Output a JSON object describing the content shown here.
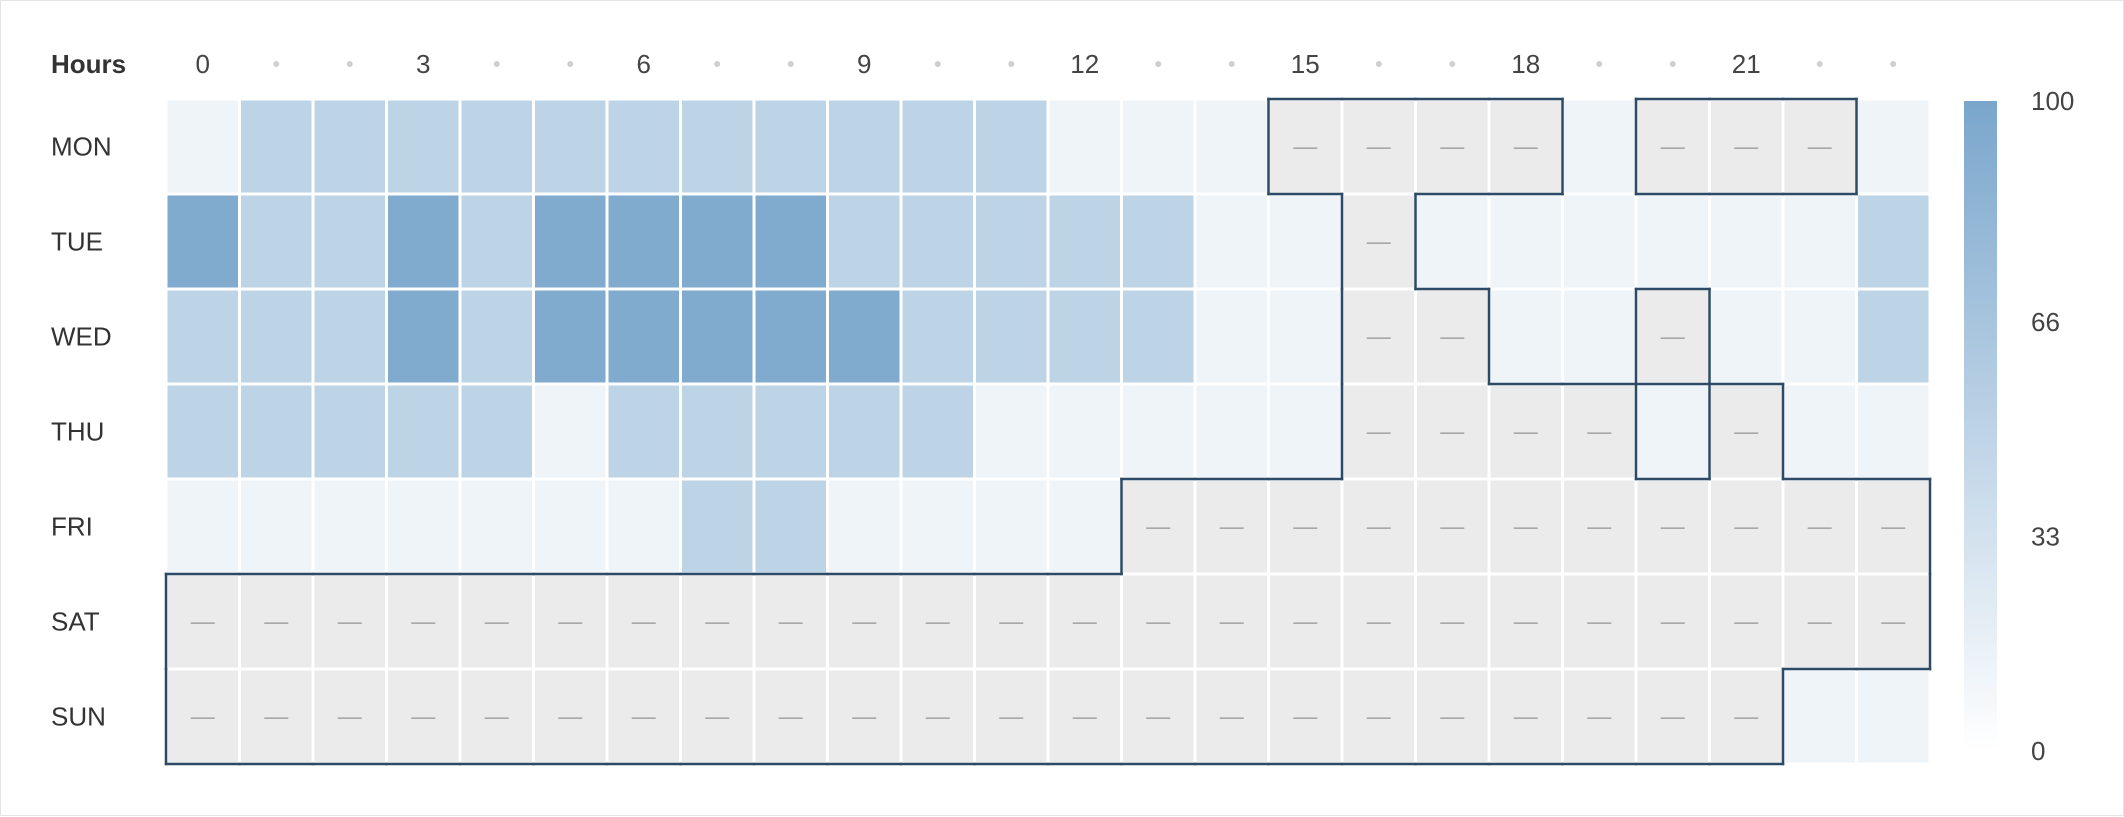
{
  "chart_data": {
    "type": "heatmap",
    "title": "",
    "x_header": "Hours",
    "x_tick_labels": [
      "0",
      "",
      "",
      "3",
      "",
      "",
      "6",
      "",
      "",
      "9",
      "",
      "",
      "12",
      "",
      "",
      "15",
      "",
      "",
      "18",
      "",
      "",
      "21",
      "",
      ""
    ],
    "hours": [
      0,
      1,
      2,
      3,
      4,
      5,
      6,
      7,
      8,
      9,
      10,
      11,
      12,
      13,
      14,
      15,
      16,
      17,
      18,
      19,
      20,
      21,
      22,
      23
    ],
    "days": [
      "MON",
      "TUE",
      "WED",
      "THU",
      "FRI",
      "SAT",
      "SUN"
    ],
    "missing_marker": "—",
    "values": [
      [
        12,
        50,
        50,
        50,
        50,
        50,
        50,
        50,
        50,
        50,
        50,
        50,
        12,
        12,
        12,
        null,
        null,
        null,
        null,
        12,
        null,
        null,
        null,
        12
      ],
      [
        95,
        50,
        50,
        95,
        50,
        95,
        95,
        95,
        95,
        50,
        50,
        50,
        50,
        50,
        12,
        12,
        null,
        12,
        12,
        12,
        12,
        12,
        12,
        50
      ],
      [
        50,
        50,
        50,
        95,
        50,
        95,
        95,
        95,
        95,
        95,
        50,
        50,
        50,
        50,
        12,
        12,
        null,
        null,
        12,
        12,
        null,
        12,
        12,
        50
      ],
      [
        50,
        50,
        50,
        50,
        50,
        12,
        50,
        50,
        50,
        50,
        50,
        12,
        12,
        12,
        12,
        12,
        null,
        null,
        null,
        null,
        12,
        null,
        12,
        12
      ],
      [
        12,
        12,
        12,
        12,
        12,
        12,
        12,
        50,
        50,
        12,
        12,
        12,
        12,
        null,
        null,
        null,
        null,
        null,
        null,
        null,
        null,
        null,
        null,
        null
      ],
      [
        null,
        null,
        null,
        null,
        null,
        null,
        null,
        null,
        null,
        null,
        null,
        null,
        null,
        null,
        null,
        null,
        null,
        null,
        null,
        null,
        null,
        null,
        null,
        null
      ],
      [
        null,
        null,
        null,
        null,
        null,
        null,
        null,
        null,
        null,
        null,
        null,
        null,
        null,
        null,
        null,
        null,
        null,
        null,
        null,
        null,
        null,
        null,
        12,
        12
      ]
    ],
    "color_scale": {
      "min": 0,
      "max": 100,
      "ticks": [
        "100",
        "66",
        "33",
        "0"
      ],
      "low_color": "#ffffff",
      "high_color": "#7aa6cc",
      "missing_color": "#ebebeb"
    },
    "outline_color": "#2d4a66",
    "grid": false,
    "legend_position": "right"
  }
}
